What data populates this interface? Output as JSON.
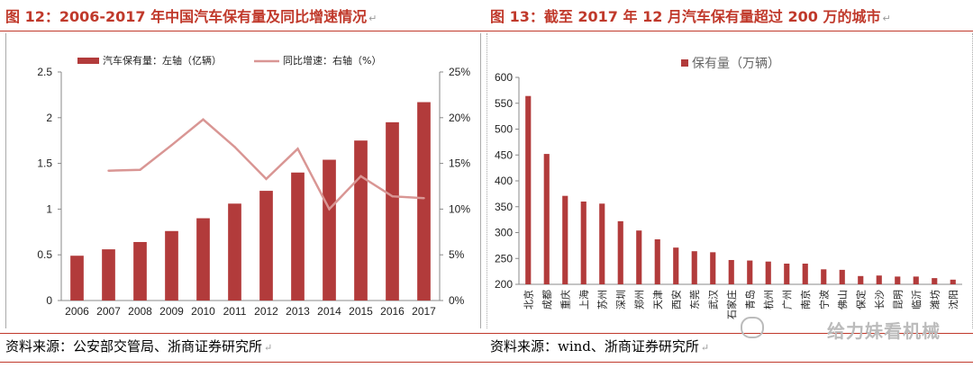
{
  "left": {
    "title": "图 12：2006-2017 年中国汽车保有量及同比增速情况",
    "source": "资料来源：公安部交管局、浙商证券研究所",
    "legend_bar": "汽车保有量：左轴（亿辆）",
    "legend_line": "同比增速：右轴（%）"
  },
  "right": {
    "title": "图 13：截至 2017 年 12 月汽车保有量超过 200 万的城市",
    "source": "资料来源：wind、浙商证券研究所",
    "legend": "保有量（万辆）"
  },
  "watermark": "给力妹看机械",
  "colors": {
    "bar": "#b23b3b",
    "line": "#d99694",
    "title": "#c0392b"
  },
  "chart_data": [
    {
      "type": "bar",
      "title": "图 12：2006-2017 年中国汽车保有量及同比增速情况",
      "categories": [
        "2006",
        "2007",
        "2008",
        "2009",
        "2010",
        "2011",
        "2012",
        "2013",
        "2014",
        "2015",
        "2016",
        "2017"
      ],
      "series": [
        {
          "name": "汽车保有量：左轴（亿辆）",
          "type": "bar",
          "axis": "left",
          "values": [
            0.49,
            0.56,
            0.64,
            0.76,
            0.9,
            1.06,
            1.2,
            1.4,
            1.54,
            1.75,
            1.95,
            2.17
          ]
        },
        {
          "name": "同比增速：右轴（%）",
          "type": "line",
          "axis": "right",
          "values": [
            null,
            14.2,
            14.3,
            17.0,
            19.8,
            16.8,
            13.3,
            16.6,
            10.0,
            13.6,
            11.4,
            11.2
          ]
        }
      ],
      "ylim_left": [
        0,
        2.5
      ],
      "yticks_left": [
        "0",
        "0.5",
        "1",
        "1.5",
        "2",
        "2.5"
      ],
      "ylim_right": [
        0,
        25
      ],
      "yticks_right": [
        "0%",
        "5%",
        "10%",
        "15%",
        "20%",
        "25%"
      ],
      "legend_position": "top",
      "grid": false
    },
    {
      "type": "bar",
      "title": "图 13：截至 2017 年 12 月汽车保有量超过 200 万的城市",
      "categories": [
        "北京",
        "成都",
        "重庆",
        "上海",
        "苏州",
        "深圳",
        "郑州",
        "天津",
        "西安",
        "东莞",
        "武汉",
        "石家庄",
        "青岛",
        "杭州",
        "广州",
        "南京",
        "宁波",
        "佛山",
        "保定",
        "长沙",
        "昆明",
        "临沂",
        "潍坊",
        "沈阳"
      ],
      "series": [
        {
          "name": "保有量（万辆）",
          "values": [
            564,
            452,
            371,
            360,
            356,
            322,
            304,
            287,
            271,
            264,
            262,
            247,
            246,
            244,
            240,
            240,
            229,
            228,
            216,
            217,
            215,
            215,
            212,
            209
          ]
        }
      ],
      "ylim": [
        200,
        600
      ],
      "yticks": [
        "200",
        "250",
        "300",
        "350",
        "400",
        "450",
        "500",
        "550",
        "600"
      ],
      "legend_position": "top",
      "grid": false
    }
  ]
}
